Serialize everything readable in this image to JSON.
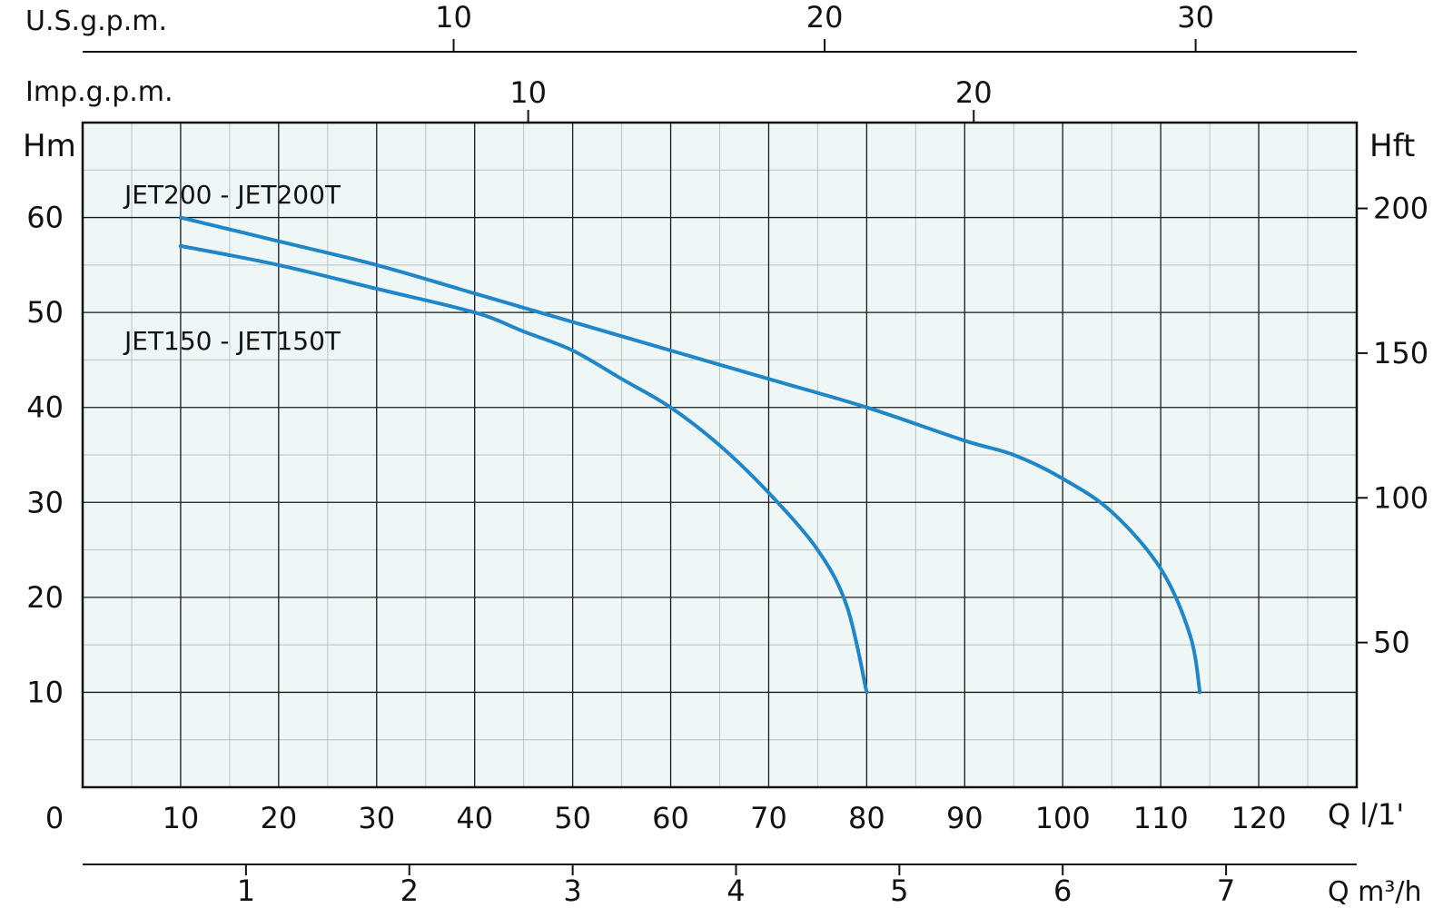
{
  "chart_data": {
    "type": "line",
    "xlabel": "Q l/1'",
    "ylabel": "Hm",
    "ylabel_right": "Hft",
    "xlim": [
      0,
      130
    ],
    "ylim": [
      0,
      70
    ],
    "grid": true,
    "x_ticks": [
      10,
      20,
      30,
      40,
      50,
      60,
      70,
      80,
      90,
      100,
      110,
      120
    ],
    "x_origin_label": "0",
    "y_ticks": [
      10,
      20,
      30,
      40,
      50,
      60
    ],
    "right_axis": {
      "label": "Hft",
      "ticks": [
        50,
        100,
        150,
        200
      ]
    },
    "top_axes": [
      {
        "label": "U.S.g.p.m.",
        "ticks": [
          10,
          20,
          30
        ]
      },
      {
        "label": "Imp.g.p.m.",
        "ticks": [
          10,
          20
        ]
      }
    ],
    "bottom_axis2": {
      "label": "Q m³/h",
      "ticks": [
        1,
        2,
        3,
        4,
        5,
        6,
        7
      ]
    },
    "series": [
      {
        "name": "JET200 - JET200T",
        "color": "#1f86c8",
        "x": [
          10,
          20,
          30,
          40,
          50,
          60,
          70,
          80,
          90,
          95,
          100,
          105,
          110,
          113,
          114
        ],
        "y": [
          60,
          57.5,
          55,
          52,
          49,
          46,
          43,
          40,
          36.5,
          35,
          32.5,
          29,
          23,
          16,
          10
        ]
      },
      {
        "name": "JET150 - JET150T",
        "color": "#1f86c8",
        "x": [
          10,
          20,
          30,
          40,
          45,
          50,
          55,
          60,
          65,
          70,
          75,
          78,
          80
        ],
        "y": [
          57,
          55,
          52.5,
          50,
          48,
          46,
          43,
          40,
          36,
          31,
          25,
          19,
          10
        ]
      }
    ]
  }
}
